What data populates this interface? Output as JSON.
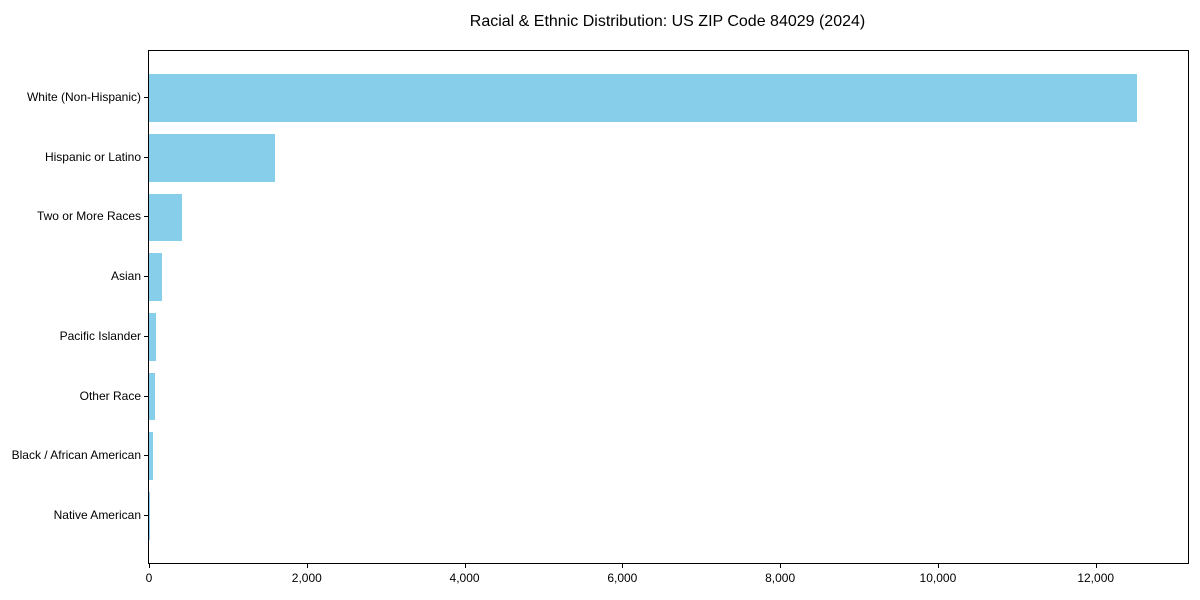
{
  "chart_data": {
    "type": "bar",
    "orientation": "horizontal",
    "title": "Racial & Ethnic Distribution: US ZIP Code 84029 (2024)",
    "categories": [
      "White (Non-Hispanic)",
      "Hispanic or Latino",
      "Two or More Races",
      "Asian",
      "Pacific Islander",
      "Other Race",
      "Black / African American",
      "Native American"
    ],
    "values": [
      12520,
      1600,
      420,
      160,
      90,
      70,
      45,
      10
    ],
    "xlabel": "",
    "ylabel": "",
    "xlim": [
      0,
      13170
    ],
    "x_ticks": [
      0,
      2000,
      4000,
      6000,
      8000,
      10000,
      12000
    ],
    "x_tick_labels": [
      "0",
      "2,000",
      "4,000",
      "6,000",
      "8,000",
      "10,000",
      "12,000"
    ],
    "bar_color": "#87CEEB",
    "axis_color": "#000000",
    "text_color": "#000000",
    "grid": false,
    "legend": null,
    "background_color": "#ffffff"
  }
}
